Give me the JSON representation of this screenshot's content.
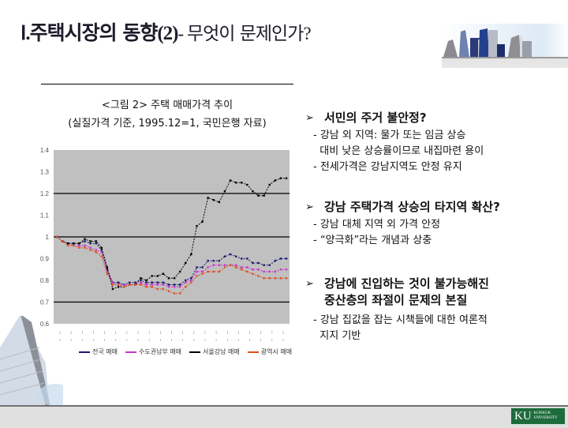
{
  "slide": {
    "title": {
      "numeral": "Ⅰ.",
      "main": "주택시장의 동향",
      "paren": "(2)",
      "dash": "- ",
      "sub": "무엇이 문제인가",
      "q": "?"
    },
    "figure": {
      "caption_line1": "<그림 2> 주택 매매가격 추이",
      "caption_line2": "(실질가격 기준, 1995.12=1, 국민은행 자료)"
    },
    "bullets": [
      {
        "heading": "서민의 주거 불안정?",
        "items": [
          "- 강남 외 지역: 물가 또는 임금 상승",
          "  대비 낮은 상승률이므로 내집마련 용이",
          "- 전세가격은 강남지역도 안정 유지"
        ]
      },
      {
        "heading": "강남 주택가격 상승의 타지역 확산?",
        "items": [
          "- 강남 대체 지역 외 가격 안정",
          "- “양극화”라는 개념과 상충"
        ]
      },
      {
        "heading_line1": "강남에 진입하는 것이 불가능해진",
        "heading_line2": "중산층의 좌절이 문제의 본질",
        "items": [
          "- 강남 집값을 잡는 시책들에 대한 여론적",
          "  지지 기반"
        ]
      }
    ],
    "bullet_marker": "➢",
    "logo": {
      "mark": "KU",
      "line1": "KONKUK",
      "line2": "UNIVERSITY"
    }
  },
  "chart_data": {
    "type": "line",
    "title": "<그림 2> 주택 매매가격 추이 (실질가격 기준, 1995.12=1, 국민은행 자료)",
    "xlabel": "",
    "ylabel": "",
    "ylim": [
      0.6,
      1.4
    ],
    "yticks": [
      "1.4",
      "1.3",
      "1.2",
      "1.1",
      "1",
      "0.9",
      "0.8",
      "0.7",
      "0.6"
    ],
    "gridlines": [
      1.2,
      1.0,
      0.7
    ],
    "plot_background": "#c0c0c0",
    "legend_position": "bottom",
    "x_tick_labels_note": "21 two-line date labels (illegible in source)",
    "x_count": 42,
    "series": [
      {
        "name": "전국 매매",
        "color": "#1a1a6e",
        "marker": "+",
        "values": [
          1.0,
          0.98,
          0.97,
          0.97,
          0.97,
          0.98,
          0.97,
          0.97,
          0.94,
          0.85,
          0.79,
          0.79,
          0.78,
          0.79,
          0.79,
          0.8,
          0.79,
          0.79,
          0.79,
          0.79,
          0.78,
          0.78,
          0.78,
          0.8,
          0.81,
          0.86,
          0.86,
          0.89,
          0.89,
          0.89,
          0.91,
          0.92,
          0.91,
          0.9,
          0.9,
          0.88,
          0.88,
          0.87,
          0.87,
          0.89,
          0.9,
          0.9
        ]
      },
      {
        "name": "수도권남부 매매",
        "color": "#cc33cc",
        "marker": "■",
        "values": [
          1.0,
          0.98,
          0.97,
          0.96,
          0.96,
          0.96,
          0.95,
          0.94,
          0.93,
          0.84,
          0.79,
          0.78,
          0.78,
          0.78,
          0.78,
          0.79,
          0.78,
          0.78,
          0.78,
          0.78,
          0.77,
          0.77,
          0.77,
          0.79,
          0.8,
          0.84,
          0.84,
          0.86,
          0.87,
          0.87,
          0.87,
          0.87,
          0.87,
          0.86,
          0.86,
          0.85,
          0.85,
          0.84,
          0.84,
          0.84,
          0.85,
          0.85
        ]
      },
      {
        "name": "서울강남 매매",
        "color": "#000000",
        "marker": "▲",
        "values": [
          1.0,
          0.98,
          0.97,
          0.97,
          0.97,
          0.99,
          0.98,
          0.98,
          0.95,
          0.86,
          0.76,
          0.77,
          0.77,
          0.78,
          0.78,
          0.81,
          0.8,
          0.82,
          0.82,
          0.83,
          0.81,
          0.81,
          0.84,
          0.88,
          0.92,
          1.05,
          1.07,
          1.18,
          1.17,
          1.16,
          1.21,
          1.26,
          1.25,
          1.25,
          1.24,
          1.21,
          1.19,
          1.19,
          1.24,
          1.26,
          1.27,
          1.27
        ]
      },
      {
        "name": "광역시 매매",
        "color": "#e05020",
        "marker": "+",
        "values": [
          1.0,
          0.98,
          0.96,
          0.96,
          0.95,
          0.95,
          0.94,
          0.93,
          0.91,
          0.83,
          0.78,
          0.78,
          0.77,
          0.78,
          0.78,
          0.78,
          0.77,
          0.77,
          0.76,
          0.76,
          0.75,
          0.74,
          0.74,
          0.77,
          0.79,
          0.82,
          0.83,
          0.84,
          0.84,
          0.84,
          0.86,
          0.87,
          0.86,
          0.85,
          0.84,
          0.83,
          0.82,
          0.81,
          0.81,
          0.81,
          0.81,
          0.81
        ]
      }
    ]
  }
}
